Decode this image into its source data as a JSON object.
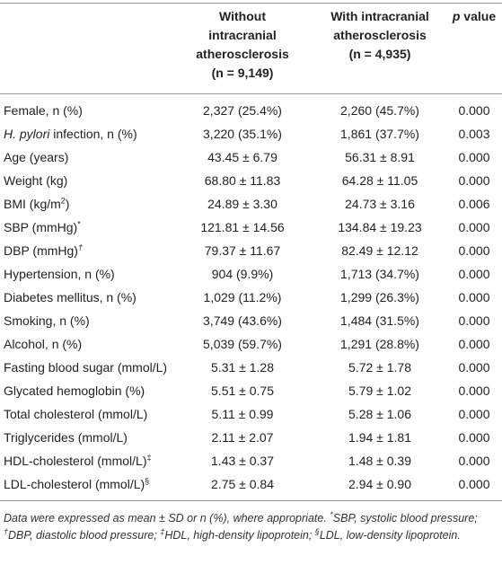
{
  "table": {
    "headers": [
      {
        "lines": [
          "Without",
          "intracranial",
          "atherosclerosis",
          "(n = 9,149)"
        ]
      },
      {
        "lines": [
          "With intracranial",
          "atherosclerosis",
          "(n = 4,935)"
        ]
      },
      {
        "segments": [
          {
            "text": "p",
            "italic": true
          },
          {
            "text": " value"
          }
        ]
      }
    ],
    "rows": [
      {
        "label": [
          {
            "text": "Female, n (%)"
          }
        ],
        "cells": [
          "2,327 (25.4%)",
          "2,260 (45.7%)",
          "0.000"
        ]
      },
      {
        "label": [
          {
            "text": "H. pylori",
            "italic": true
          },
          {
            "text": " infection, n (%)"
          }
        ],
        "cells": [
          "3,220 (35.1%)",
          "1,861 (37.7%)",
          "0.003"
        ]
      },
      {
        "label": [
          {
            "text": "Age (years)"
          }
        ],
        "cells": [
          "43.45 ± 6.79",
          "56.31 ± 8.91",
          "0.000"
        ]
      },
      {
        "label": [
          {
            "text": "Weight (kg)"
          }
        ],
        "cells": [
          "68.80 ± 11.83",
          "64.28 ± 11.05",
          "0.000"
        ]
      },
      {
        "label": [
          {
            "text": "BMI (kg/m"
          },
          {
            "text": "2",
            "sup": true
          },
          {
            "text": ")"
          }
        ],
        "cells": [
          "24.89 ± 3.30",
          "24.73 ± 3.16",
          "0.006"
        ]
      },
      {
        "label": [
          {
            "text": "SBP (mmHg)"
          },
          {
            "text": "*",
            "sup": true
          }
        ],
        "cells": [
          "121.81 ± 14.56",
          "134.84 ± 19.23",
          "0.000"
        ]
      },
      {
        "label": [
          {
            "text": "DBP (mmHg)"
          },
          {
            "text": "†",
            "sup": true,
            "italic": true
          }
        ],
        "cells": [
          "79.37 ± 11.67",
          "82.49 ± 12.12",
          "0.000"
        ]
      },
      {
        "label": [
          {
            "text": "Hypertension, n (%)"
          }
        ],
        "cells": [
          "904 (9.9%)",
          "1,713 (34.7%)",
          "0.000"
        ]
      },
      {
        "label": [
          {
            "text": "Diabetes mellitus, n (%)"
          }
        ],
        "cells": [
          "1,029 (11.2%)",
          "1,299 (26.3%)",
          "0.000"
        ]
      },
      {
        "label": [
          {
            "text": "Smoking, n (%)"
          }
        ],
        "cells": [
          "3,749 (43.6%)",
          "1,484 (31.5%)",
          "0.000"
        ]
      },
      {
        "label": [
          {
            "text": "Alcohol, n (%)"
          }
        ],
        "cells": [
          "5,039 (59.7%)",
          "1,291 (28.8%)",
          "0.000"
        ]
      },
      {
        "label": [
          {
            "text": "Fasting blood sugar (mmol/L)"
          }
        ],
        "cells": [
          "5.31 ± 1.28",
          "5.72 ± 1.78",
          "0.000"
        ]
      },
      {
        "label": [
          {
            "text": "Glycated hemoglobin (%)"
          }
        ],
        "cells": [
          "5.51 ± 0.75",
          "5.79 ± 1.02",
          "0.000"
        ]
      },
      {
        "label": [
          {
            "text": "Total cholesterol (mmol/L)"
          }
        ],
        "cells": [
          "5.11 ± 0.99",
          "5.28 ± 1.06",
          "0.000"
        ]
      },
      {
        "label": [
          {
            "text": "Triglycerides (mmol/L)"
          }
        ],
        "cells": [
          "2.11 ± 2.07",
          "1.94 ± 1.81",
          "0.000"
        ]
      },
      {
        "label": [
          {
            "text": "HDL-cholesterol (mmol/L)"
          },
          {
            "text": "‡",
            "sup": true
          }
        ],
        "cells": [
          "1.43 ± 0.37",
          "1.48 ± 0.39",
          "0.000"
        ]
      },
      {
        "label": [
          {
            "text": "LDL-cholesterol (mmol/L)"
          },
          {
            "text": "§",
            "sup": true
          }
        ],
        "cells": [
          "2.75 ± 0.84",
          "2.94 ± 0.90",
          "0.000"
        ]
      }
    ],
    "footnote": [
      {
        "text": "Data were expressed as mean ± SD or n (%), where appropriate. "
      },
      {
        "text": "*",
        "sup": true
      },
      {
        "text": "SBP, systolic blood pressure; "
      },
      {
        "text": "†",
        "sup": true
      },
      {
        "text": "DBP, diastolic blood pressure; "
      },
      {
        "text": "‡",
        "sup": true
      },
      {
        "text": "HDL, high-density lipoprotein; "
      },
      {
        "text": "§",
        "sup": true
      },
      {
        "text": "LDL, low-density lipoprotein."
      }
    ]
  }
}
